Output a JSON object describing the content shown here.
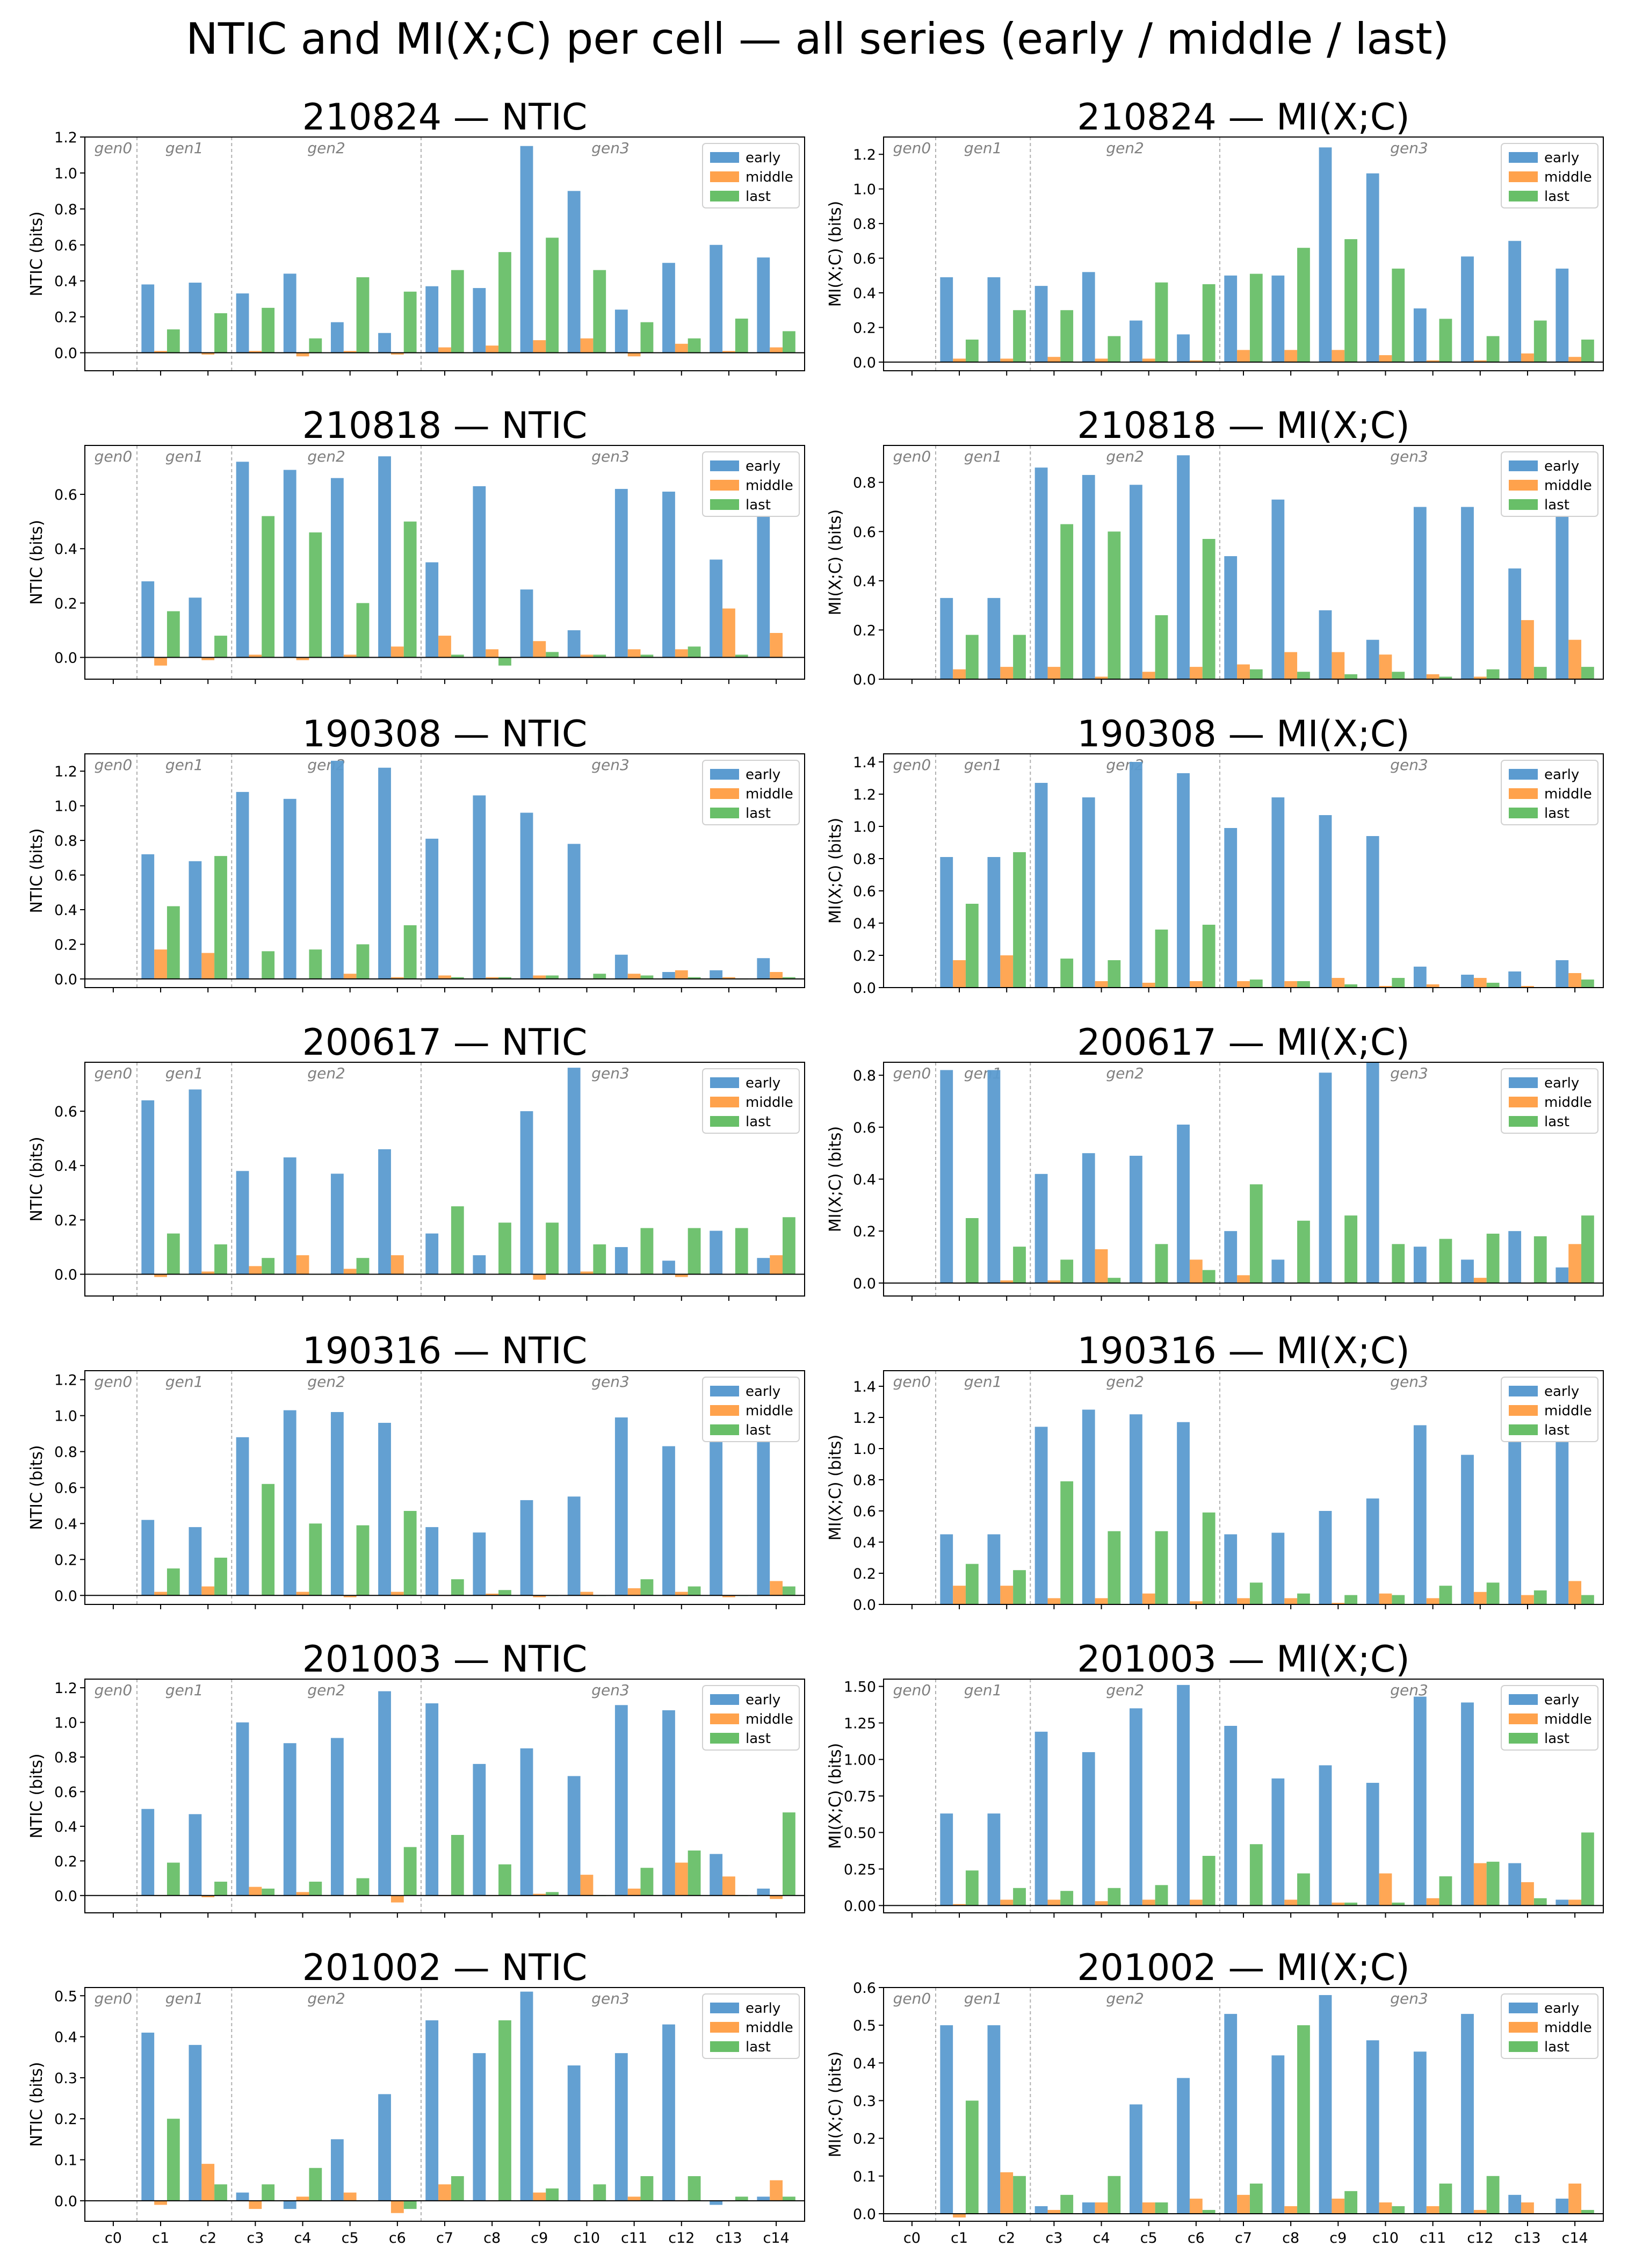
{
  "figure_title": "NTIC and MI(X;C) per cell — all series (early / middle / last)",
  "categories": [
    "c0",
    "c1",
    "c2",
    "c3",
    "c4",
    "c5",
    "c6",
    "c7",
    "c8",
    "c9",
    "c10",
    "c11",
    "c12",
    "c13",
    "c14"
  ],
  "generations": [
    {
      "label": "gen0",
      "start": 0,
      "end": 0
    },
    {
      "label": "gen1",
      "start": 1,
      "end": 2
    },
    {
      "label": "gen2",
      "start": 3,
      "end": 6
    },
    {
      "label": "gen3",
      "start": 7,
      "end": 14
    }
  ],
  "legend": [
    "early",
    "middle",
    "last"
  ],
  "colors": {
    "early": "#5b9bd0",
    "middle": "#ffa24c",
    "last": "#68bf68"
  },
  "legend_position": "top-right",
  "chart_data": [
    {
      "type": "bar",
      "title": "210824 — NTIC",
      "ylabel": "NTIC (bits)",
      "ylim": [
        -0.1,
        1.2
      ],
      "yticks": [
        0.0,
        0.2,
        0.4,
        0.6,
        0.8,
        1.0,
        1.2
      ],
      "tick_format": "1",
      "series": [
        {
          "name": "early",
          "values": [
            0,
            0.38,
            0.39,
            0.33,
            0.44,
            0.17,
            0.11,
            0.37,
            0.36,
            1.15,
            0.9,
            0.24,
            0.5,
            0.6,
            0.53
          ]
        },
        {
          "name": "middle",
          "values": [
            0,
            0.01,
            -0.01,
            0.01,
            -0.02,
            0.01,
            -0.01,
            0.03,
            0.04,
            0.07,
            0.08,
            -0.02,
            0.05,
            0.01,
            0.03
          ]
        },
        {
          "name": "last",
          "values": [
            0,
            0.13,
            0.22,
            0.25,
            0.08,
            0.42,
            0.34,
            0.46,
            0.56,
            0.64,
            0.46,
            0.17,
            0.08,
            0.19,
            0.12
          ]
        }
      ]
    },
    {
      "type": "bar",
      "title": "210824 — MI(X;C)",
      "ylabel": "MI(X;C) (bits)",
      "ylim": [
        -0.05,
        1.3
      ],
      "yticks": [
        0.0,
        0.2,
        0.4,
        0.6,
        0.8,
        1.0,
        1.2
      ],
      "tick_format": "1",
      "series": [
        {
          "name": "early",
          "values": [
            0,
            0.49,
            0.49,
            0.44,
            0.52,
            0.24,
            0.16,
            0.5,
            0.5,
            1.24,
            1.09,
            0.31,
            0.61,
            0.7,
            0.54
          ]
        },
        {
          "name": "middle",
          "values": [
            0,
            0.02,
            0.02,
            0.03,
            0.02,
            0.02,
            0.01,
            0.07,
            0.07,
            0.07,
            0.04,
            0.01,
            0.01,
            0.05,
            0.03
          ]
        },
        {
          "name": "last",
          "values": [
            0,
            0.13,
            0.3,
            0.3,
            0.15,
            0.46,
            0.45,
            0.51,
            0.66,
            0.71,
            0.54,
            0.25,
            0.15,
            0.24,
            0.13
          ]
        }
      ]
    },
    {
      "type": "bar",
      "title": "210818 — NTIC",
      "ylabel": "NTIC (bits)",
      "ylim": [
        -0.08,
        0.78
      ],
      "yticks": [
        0.0,
        0.2,
        0.4,
        0.6
      ],
      "tick_format": "1",
      "series": [
        {
          "name": "early",
          "values": [
            0,
            0.28,
            0.22,
            0.72,
            0.69,
            0.66,
            0.74,
            0.35,
            0.63,
            0.25,
            0.1,
            0.62,
            0.61,
            0.36,
            0.64
          ]
        },
        {
          "name": "middle",
          "values": [
            0,
            -0.03,
            -0.01,
            0.01,
            -0.01,
            0.01,
            0.04,
            0.08,
            0.03,
            0.06,
            0.01,
            0.03,
            0.03,
            0.18,
            0.09
          ]
        },
        {
          "name": "last",
          "values": [
            0,
            0.17,
            0.08,
            0.52,
            0.46,
            0.2,
            0.5,
            0.01,
            -0.03,
            0.02,
            0.01,
            0.01,
            0.04,
            0.01,
            0.0
          ]
        }
      ]
    },
    {
      "type": "bar",
      "title": "210818 — MI(X;C)",
      "ylabel": "MI(X;C) (bits)",
      "ylim": [
        0,
        0.95
      ],
      "yticks": [
        0.0,
        0.2,
        0.4,
        0.6,
        0.8
      ],
      "tick_format": "1",
      "series": [
        {
          "name": "early",
          "values": [
            0,
            0.33,
            0.33,
            0.86,
            0.83,
            0.79,
            0.91,
            0.5,
            0.73,
            0.28,
            0.16,
            0.7,
            0.7,
            0.45,
            0.78
          ]
        },
        {
          "name": "middle",
          "values": [
            0,
            0.04,
            0.05,
            0.05,
            0.01,
            0.03,
            0.05,
            0.06,
            0.11,
            0.11,
            0.1,
            0.02,
            0.01,
            0.24,
            0.16
          ]
        },
        {
          "name": "last",
          "values": [
            0,
            0.18,
            0.18,
            0.63,
            0.6,
            0.26,
            0.57,
            0.04,
            0.03,
            0.02,
            0.03,
            0.01,
            0.04,
            0.05,
            0.05
          ]
        }
      ]
    },
    {
      "type": "bar",
      "title": "190308 — NTIC",
      "ylabel": "NTIC (bits)",
      "ylim": [
        -0.05,
        1.3
      ],
      "yticks": [
        0.0,
        0.2,
        0.4,
        0.6,
        0.8,
        1.0,
        1.2
      ],
      "tick_format": "1",
      "series": [
        {
          "name": "early",
          "values": [
            0,
            0.72,
            0.68,
            1.08,
            1.04,
            1.26,
            1.22,
            0.81,
            1.06,
            0.96,
            0.78,
            0.14,
            0.04,
            0.05,
            0.12
          ]
        },
        {
          "name": "middle",
          "values": [
            0,
            0.17,
            0.15,
            0.0,
            0.0,
            0.03,
            0.01,
            0.02,
            0.01,
            0.02,
            0.0,
            0.03,
            0.05,
            0.01,
            0.04
          ]
        },
        {
          "name": "last",
          "values": [
            0,
            0.42,
            0.71,
            0.16,
            0.17,
            0.2,
            0.31,
            0.01,
            0.01,
            0.02,
            0.03,
            0.02,
            0.01,
            0.0,
            0.01
          ]
        }
      ]
    },
    {
      "type": "bar",
      "title": "190308 — MI(X;C)",
      "ylabel": "MI(X;C) (bits)",
      "ylim": [
        0,
        1.45
      ],
      "yticks": [
        0.0,
        0.2,
        0.4,
        0.6,
        0.8,
        1.0,
        1.2,
        1.4
      ],
      "tick_format": "1",
      "series": [
        {
          "name": "early",
          "values": [
            0,
            0.81,
            0.81,
            1.27,
            1.18,
            1.4,
            1.33,
            0.99,
            1.18,
            1.07,
            0.94,
            0.13,
            0.08,
            0.1,
            0.17
          ]
        },
        {
          "name": "middle",
          "values": [
            0,
            0.17,
            0.2,
            0.0,
            0.04,
            0.03,
            0.04,
            0.04,
            0.04,
            0.06,
            0.01,
            0.02,
            0.06,
            0.01,
            0.09
          ]
        },
        {
          "name": "last",
          "values": [
            0,
            0.52,
            0.84,
            0.18,
            0.17,
            0.36,
            0.39,
            0.05,
            0.04,
            0.02,
            0.06,
            0.0,
            0.03,
            0.0,
            0.05
          ]
        }
      ]
    },
    {
      "type": "bar",
      "title": "200617 — NTIC",
      "ylabel": "NTIC (bits)",
      "ylim": [
        -0.08,
        0.78
      ],
      "yticks": [
        0.0,
        0.2,
        0.4,
        0.6
      ],
      "tick_format": "1",
      "series": [
        {
          "name": "early",
          "values": [
            0,
            0.64,
            0.68,
            0.38,
            0.43,
            0.37,
            0.46,
            0.15,
            0.07,
            0.6,
            0.76,
            0.1,
            0.05,
            0.16,
            0.06
          ]
        },
        {
          "name": "middle",
          "values": [
            0,
            -0.01,
            0.01,
            0.03,
            0.07,
            0.02,
            0.07,
            0.0,
            0.0,
            -0.02,
            0.01,
            0.0,
            -0.01,
            0.0,
            0.07
          ]
        },
        {
          "name": "last",
          "values": [
            0,
            0.15,
            0.11,
            0.06,
            0.0,
            0.06,
            0.0,
            0.25,
            0.19,
            0.19,
            0.11,
            0.17,
            0.17,
            0.17,
            0.21
          ]
        }
      ]
    },
    {
      "type": "bar",
      "title": "200617 — MI(X;C)",
      "ylabel": "MI(X;C) (bits)",
      "ylim": [
        -0.05,
        0.85
      ],
      "yticks": [
        0.0,
        0.2,
        0.4,
        0.6,
        0.8
      ],
      "tick_format": "1",
      "series": [
        {
          "name": "early",
          "values": [
            0,
            0.82,
            0.82,
            0.42,
            0.5,
            0.49,
            0.61,
            0.2,
            0.09,
            0.81,
            0.85,
            0.14,
            0.09,
            0.2,
            0.06
          ]
        },
        {
          "name": "middle",
          "values": [
            0,
            0.0,
            0.01,
            0.01,
            0.13,
            0.0,
            0.09,
            0.03,
            0.0,
            0.0,
            0.0,
            0.0,
            0.02,
            0.0,
            0.15
          ]
        },
        {
          "name": "last",
          "values": [
            0,
            0.25,
            0.14,
            0.09,
            0.02,
            0.15,
            0.05,
            0.38,
            0.24,
            0.26,
            0.15,
            0.17,
            0.19,
            0.18,
            0.26
          ]
        }
      ]
    },
    {
      "type": "bar",
      "title": "190316 — NTIC",
      "ylabel": "NTIC (bits)",
      "ylim": [
        -0.05,
        1.25
      ],
      "yticks": [
        0.0,
        0.2,
        0.4,
        0.6,
        0.8,
        1.0,
        1.2
      ],
      "tick_format": "1",
      "series": [
        {
          "name": "early",
          "values": [
            0,
            0.42,
            0.38,
            0.88,
            1.03,
            1.02,
            0.96,
            0.38,
            0.35,
            0.53,
            0.55,
            0.99,
            0.83,
            1.2,
            1.2
          ]
        },
        {
          "name": "middle",
          "values": [
            0,
            0.02,
            0.05,
            0.0,
            0.02,
            -0.01,
            0.02,
            0.0,
            0.01,
            -0.01,
            0.02,
            0.04,
            0.02,
            -0.01,
            0.08
          ]
        },
        {
          "name": "last",
          "values": [
            0,
            0.15,
            0.21,
            0.62,
            0.4,
            0.39,
            0.47,
            0.09,
            0.03,
            0.0,
            0.0,
            0.09,
            0.05,
            0.0,
            0.05
          ]
        }
      ]
    },
    {
      "type": "bar",
      "title": "190316 — MI(X;C)",
      "ylabel": "MI(X;C) (bits)",
      "ylim": [
        0,
        1.5
      ],
      "yticks": [
        0.0,
        0.2,
        0.4,
        0.6,
        0.8,
        1.0,
        1.2,
        1.4
      ],
      "tick_format": "1",
      "series": [
        {
          "name": "early",
          "values": [
            0,
            0.45,
            0.45,
            1.14,
            1.25,
            1.22,
            1.17,
            0.45,
            0.46,
            0.6,
            0.68,
            1.15,
            0.96,
            1.37,
            1.45
          ]
        },
        {
          "name": "middle",
          "values": [
            0,
            0.12,
            0.12,
            0.04,
            0.04,
            0.07,
            0.02,
            0.04,
            0.04,
            0.01,
            0.07,
            0.04,
            0.08,
            0.06,
            0.15
          ]
        },
        {
          "name": "last",
          "values": [
            0,
            0.26,
            0.22,
            0.79,
            0.47,
            0.47,
            0.59,
            0.14,
            0.07,
            0.06,
            0.06,
            0.12,
            0.14,
            0.09,
            0.06
          ]
        }
      ]
    },
    {
      "type": "bar",
      "title": "201003 — NTIC",
      "ylabel": "NTIC (bits)",
      "ylim": [
        -0.1,
        1.25
      ],
      "yticks": [
        0.0,
        0.2,
        0.4,
        0.6,
        0.8,
        1.0,
        1.2
      ],
      "tick_format": "1",
      "series": [
        {
          "name": "early",
          "values": [
            0,
            0.5,
            0.47,
            1.0,
            0.88,
            0.91,
            1.18,
            1.11,
            0.76,
            0.85,
            0.69,
            1.1,
            1.07,
            0.24,
            0.04
          ]
        },
        {
          "name": "middle",
          "values": [
            0,
            0.0,
            -0.01,
            0.05,
            0.02,
            0.0,
            -0.04,
            0.0,
            0.0,
            0.01,
            0.12,
            0.04,
            0.19,
            0.11,
            -0.02
          ]
        },
        {
          "name": "last",
          "values": [
            0,
            0.19,
            0.08,
            0.04,
            0.08,
            0.1,
            0.28,
            0.35,
            0.18,
            0.02,
            0.0,
            0.16,
            0.26,
            0.0,
            0.48
          ]
        }
      ]
    },
    {
      "type": "bar",
      "title": "201003 — MI(X;C)",
      "ylabel": "MI(X;C) (bits)",
      "ylim": [
        -0.05,
        1.55
      ],
      "yticks": [
        0.0,
        0.25,
        0.5,
        0.75,
        1.0,
        1.25,
        1.5
      ],
      "tick_format": "2",
      "series": [
        {
          "name": "early",
          "values": [
            0,
            0.63,
            0.63,
            1.19,
            1.05,
            1.35,
            1.51,
            1.23,
            0.87,
            0.96,
            0.84,
            1.43,
            1.39,
            0.29,
            0.04
          ]
        },
        {
          "name": "middle",
          "values": [
            0,
            0.01,
            0.04,
            0.04,
            0.03,
            0.04,
            0.04,
            0.0,
            0.04,
            0.02,
            0.22,
            0.05,
            0.29,
            0.16,
            0.04
          ]
        },
        {
          "name": "last",
          "values": [
            0,
            0.24,
            0.12,
            0.1,
            0.12,
            0.14,
            0.34,
            0.42,
            0.22,
            0.02,
            0.02,
            0.2,
            0.3,
            0.05,
            0.5
          ]
        }
      ]
    },
    {
      "type": "bar",
      "title": "201002 — NTIC",
      "ylabel": "NTIC (bits)",
      "ylim": [
        -0.05,
        0.52
      ],
      "yticks": [
        0.0,
        0.1,
        0.2,
        0.3,
        0.4,
        0.5
      ],
      "tick_format": "1",
      "series": [
        {
          "name": "early",
          "values": [
            0,
            0.41,
            0.38,
            0.02,
            -0.02,
            0.15,
            0.26,
            0.44,
            0.36,
            0.51,
            0.33,
            0.36,
            0.43,
            -0.01,
            0.01
          ]
        },
        {
          "name": "middle",
          "values": [
            0,
            -0.01,
            0.09,
            -0.02,
            0.01,
            0.02,
            -0.03,
            0.04,
            0.0,
            0.02,
            0.0,
            0.01,
            0.0,
            0.0,
            0.05
          ]
        },
        {
          "name": "last",
          "values": [
            0,
            0.2,
            0.04,
            0.04,
            0.08,
            0.0,
            -0.02,
            0.06,
            0.44,
            0.03,
            0.04,
            0.06,
            0.06,
            0.01,
            0.01
          ]
        }
      ]
    },
    {
      "type": "bar",
      "title": "201002 — MI(X;C)",
      "ylabel": "MI(X;C) (bits)",
      "ylim": [
        -0.02,
        0.6
      ],
      "yticks": [
        0.0,
        0.1,
        0.2,
        0.3,
        0.4,
        0.5,
        0.6
      ],
      "tick_format": "1",
      "series": [
        {
          "name": "early",
          "values": [
            0,
            0.5,
            0.5,
            0.02,
            0.03,
            0.29,
            0.36,
            0.53,
            0.42,
            0.58,
            0.46,
            0.43,
            0.53,
            0.05,
            0.04
          ]
        },
        {
          "name": "middle",
          "values": [
            0,
            -0.01,
            0.11,
            0.01,
            0.03,
            0.03,
            0.04,
            0.05,
            0.02,
            0.04,
            0.03,
            0.02,
            0.01,
            0.03,
            0.08
          ]
        },
        {
          "name": "last",
          "values": [
            0,
            0.3,
            0.1,
            0.05,
            0.1,
            0.03,
            0.01,
            0.08,
            0.5,
            0.06,
            0.02,
            0.08,
            0.1,
            0.0,
            0.01
          ]
        }
      ]
    }
  ]
}
